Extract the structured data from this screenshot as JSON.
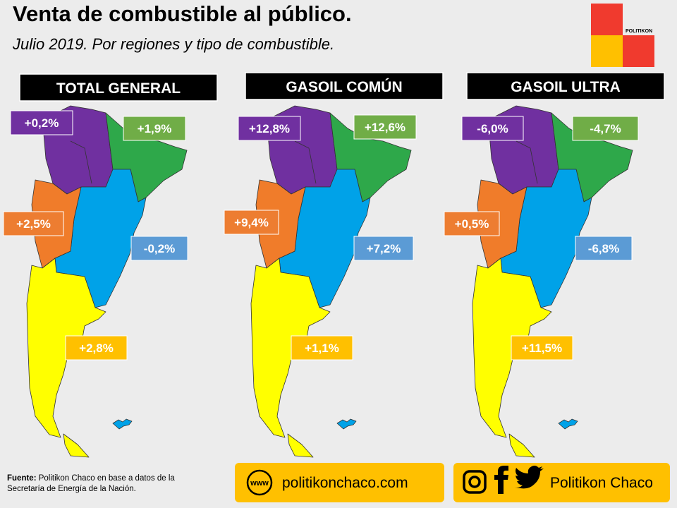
{
  "header": {
    "title": "Venta de combustible al público.",
    "subtitle": "Julio 2019. Por regiones y tipo de combustible.",
    "logo": "POLITIKON"
  },
  "panels": [
    {
      "title": "TOTAL GENERAL",
      "labels": {
        "noa": "+0,2%",
        "nea": "+1,9%",
        "cuyo": "+2,5%",
        "centro": "-0,2%",
        "patagonia": "+2,8%"
      }
    },
    {
      "title": "GASOIL COMÚN",
      "labels": {
        "noa": "+12,8%",
        "nea": "+12,6%",
        "cuyo": "+9,4%",
        "centro": "+7,2%",
        "patagonia": "+1,1%"
      }
    },
    {
      "title": "GASOIL ULTRA",
      "labels": {
        "noa": "-6,0%",
        "nea": "-4,7%",
        "cuyo": "+0,5%",
        "centro": "-6,8%",
        "patagonia": "+11,5%"
      }
    }
  ],
  "footer": {
    "source_label": "Fuente:",
    "source_text": "Politikon Chaco en base a datos de la Secretaría de Energía de la Nación.",
    "web_icon": "www",
    "website": "politikonchaco.com",
    "social": "Politikon Chaco"
  }
}
